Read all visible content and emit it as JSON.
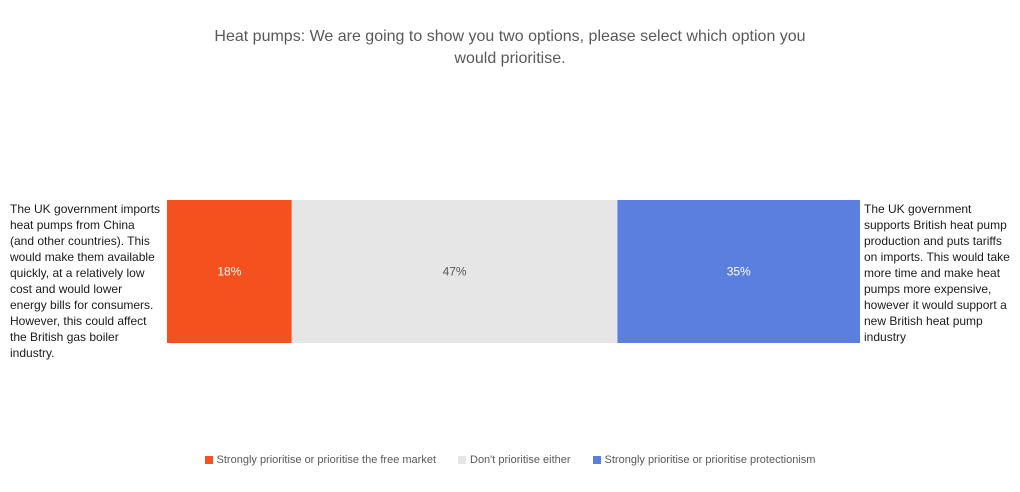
{
  "chart_data": {
    "type": "bar",
    "orientation": "horizontal",
    "stacked": true,
    "title": "Heat pumps: We are going to show you two options, please select which option you would prioritise.",
    "left_option": "The UK government imports heat pumps from China (and other countries). This would make them available quickly, at a relatively low cost and would lower energy bills for consumers. However, this could affect the British gas boiler industry.",
    "right_option": "The UK government supports British heat pump production and puts tariffs on imports. This would take more time and make heat pumps more expensive, however it would support a new British heat pump industry",
    "series": [
      {
        "name": "Strongly prioritise or prioritise the free market",
        "value": 18,
        "label": "18%",
        "color": "#f4511e",
        "label_color": "#ffffff"
      },
      {
        "name": "Don't prioritise either",
        "value": 47,
        "label": "47%",
        "color": "#e6e6e6",
        "label_color": "#595959"
      },
      {
        "name": "Strongly prioritise or prioritise protectionism",
        "value": 35,
        "label": "35%",
        "color": "#5b7fde",
        "label_color": "#ffffff"
      }
    ],
    "xlim": [
      0,
      100
    ],
    "grid": false,
    "legend_position": "bottom"
  }
}
